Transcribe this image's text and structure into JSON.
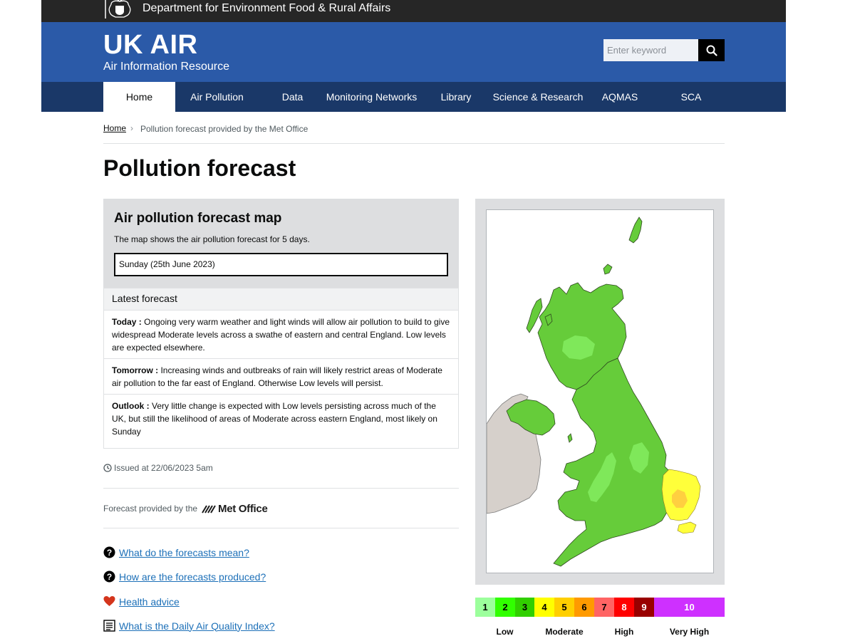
{
  "top_bar": {
    "department": "Department for Environment Food & Rural Affairs"
  },
  "masthead": {
    "title": "UK AIR",
    "subtitle": "Air Information Resource"
  },
  "search": {
    "placeholder": "Enter keyword"
  },
  "nav": [
    {
      "label": "Home",
      "active": true
    },
    {
      "label": "Air Pollution"
    },
    {
      "label": "Data"
    },
    {
      "label": "Monitoring Networks"
    },
    {
      "label": "Library"
    },
    {
      "label": "Science & Research"
    },
    {
      "label": "AQMAS"
    },
    {
      "label": "SCA"
    }
  ],
  "breadcrumb": {
    "home": "Home",
    "current": "Pollution forecast provided by the Met Office"
  },
  "page_title": "Pollution forecast",
  "map_panel": {
    "heading": "Air pollution forecast map",
    "description": "The map shows the air pollution forecast for 5 days.",
    "selected_day": "Sunday (25th June 2023)"
  },
  "latest": {
    "heading": "Latest forecast",
    "today": {
      "label": "Today :",
      "text": "Ongoing very warm weather and light winds will allow air pollution to build to give widespread Moderate levels across a swathe of eastern and central England. Low levels are expected elsewhere."
    },
    "tomorrow": {
      "label": "Tomorrow :",
      "text": "Increasing winds and outbreaks of rain will likely restrict areas of Moderate air pollution to the far east of England. Otherwise Low levels will persist."
    },
    "outlook": {
      "label": "Outlook :",
      "text": "Very little change is expected with Low levels persisting across much of the UK, but still the likelihood of areas of Moderate across eastern England, most likely on Sunday"
    }
  },
  "issued": "Issued at 22/06/2023 5am",
  "provider": {
    "text": "Forecast provided by the",
    "logo_text": "Met Office"
  },
  "help_links": [
    {
      "icon": "question-circle-icon",
      "label": "What do the forecasts mean?"
    },
    {
      "icon": "question-circle-icon",
      "label": "How are the forecasts produced?"
    },
    {
      "icon": "heart-icon",
      "label": "Health advice"
    },
    {
      "icon": "document-list-icon",
      "label": "What is the Daily Air Quality Index?"
    }
  ],
  "legend": {
    "bands": [
      {
        "value": "1",
        "color": "#9cff9c",
        "text_color": "#000000"
      },
      {
        "value": "2",
        "color": "#31ff00",
        "text_color": "#000000"
      },
      {
        "value": "3",
        "color": "#31cf00",
        "text_color": "#000000"
      },
      {
        "value": "4",
        "color": "#ffff00",
        "text_color": "#000000"
      },
      {
        "value": "5",
        "color": "#ffcf00",
        "text_color": "#000000"
      },
      {
        "value": "6",
        "color": "#ff9a00",
        "text_color": "#000000"
      },
      {
        "value": "7",
        "color": "#ff6464",
        "text_color": "#000000"
      },
      {
        "value": "8",
        "color": "#ff0000",
        "text_color": "#ffffff"
      },
      {
        "value": "9",
        "color": "#990000",
        "text_color": "#ffffff"
      },
      {
        "value": "10",
        "color": "#ce30ff",
        "text_color": "#ffffff"
      }
    ],
    "labels": [
      "Low",
      "Moderate",
      "High",
      "Very High"
    ]
  },
  "colors": {
    "gov_bar": "#262626",
    "masthead": "#2b5aa8",
    "nav": "#1a3868",
    "link": "#1d70b8"
  }
}
